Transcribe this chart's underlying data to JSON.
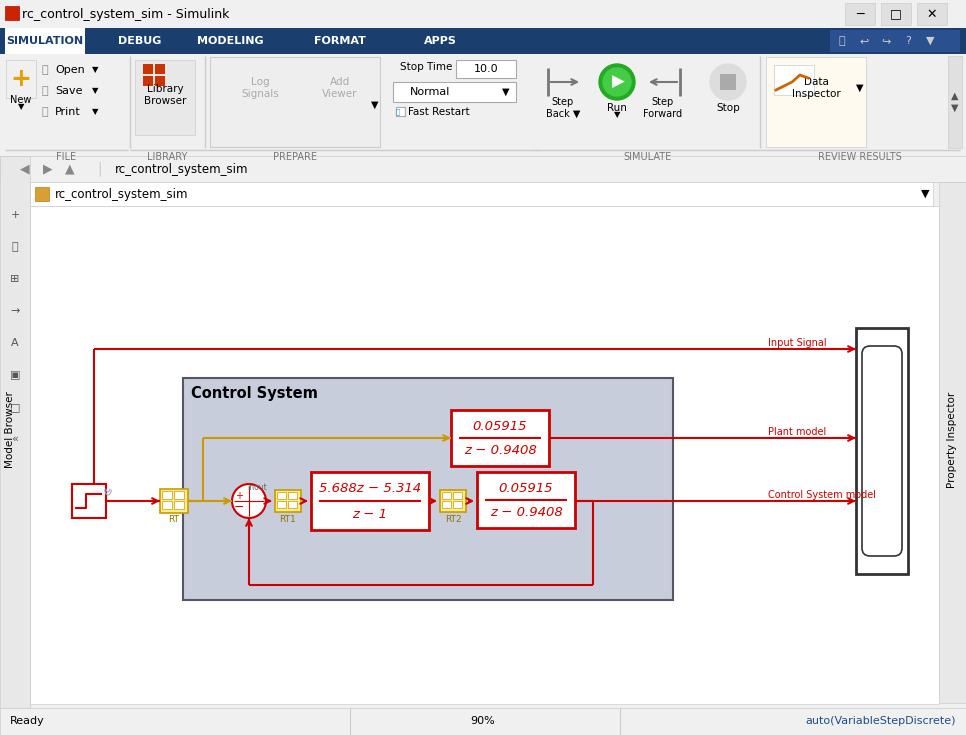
{
  "title_bar": "rc_control_system_sim - Simulink",
  "tabs": [
    "SIMULATION",
    "DEBUG",
    "MODELING",
    "FORMAT",
    "APPS"
  ],
  "breadcrumb": "rc_control_system_sim",
  "status_left": "Ready",
  "status_center": "90%",
  "status_right": "auto(VariableStepDiscrete)",
  "subsystem_label": "Control System",
  "plant_tf_num": "0.05915",
  "plant_tf_den": "z − 0.9408",
  "controller_tf_num": "5.688z − 5.314",
  "controller_tf_den": "z − 1",
  "output_tf_num": "0.05915",
  "output_tf_den": "z − 0.9408",
  "label_input_signal": "Input Signal",
  "label_plant_model": "Plant model",
  "label_cs_model": "Control System model"
}
